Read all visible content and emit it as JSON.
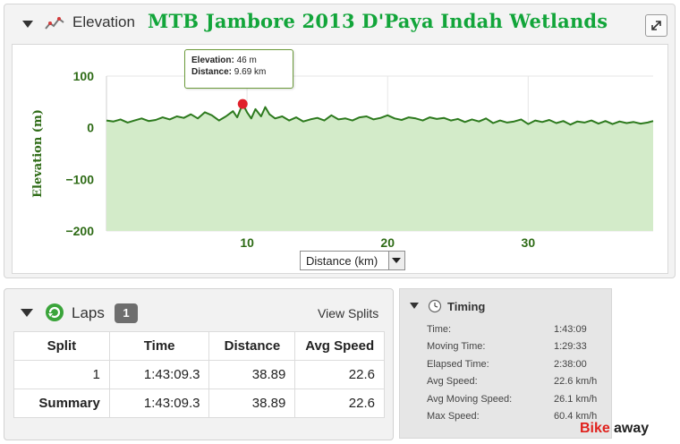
{
  "elevation_panel": {
    "title": "Elevation",
    "route_title": "MTB Jambore 2013 D'Paya Indah Wetlands",
    "tooltip": {
      "elevation_label": "Elevation:",
      "elevation_value": "46 m",
      "distance_label": "Distance:",
      "distance_value": "9.69 km"
    },
    "x_axis_select": "Distance (km)"
  },
  "chart_data": {
    "type": "area",
    "title": "",
    "xlabel": "Distance (km)",
    "ylabel": "Elevation (m)",
    "xlim": [
      0,
      38.89
    ],
    "ylim": [
      -200,
      100
    ],
    "x_ticks": [
      10,
      20,
      30
    ],
    "y_ticks": [
      100,
      0,
      -100,
      -200
    ],
    "fill_color": "#d3ebc9",
    "line_color": "#2d7a1e",
    "marker_color": "#e0202a",
    "highlight_point": {
      "x": 9.69,
      "y": 46
    },
    "series": [
      {
        "x": [
          0,
          0.5,
          1,
          1.5,
          2,
          2.5,
          3,
          3.5,
          4,
          4.5,
          5,
          5.5,
          6,
          6.5,
          7,
          7.5,
          8,
          8.5,
          9,
          9.3,
          9.69,
          10,
          10.3,
          10.6,
          11,
          11.3,
          11.6,
          12,
          12.5,
          13,
          13.5,
          14,
          14.5,
          15,
          15.5,
          16,
          16.5,
          17,
          17.5,
          18,
          18.5,
          19,
          19.5,
          20,
          20.5,
          21,
          21.5,
          22,
          22.5,
          23,
          23.5,
          24,
          24.5,
          25,
          25.5,
          26,
          26.5,
          27,
          27.5,
          28,
          28.5,
          29,
          29.5,
          30,
          30.5,
          31,
          31.5,
          32,
          32.5,
          33,
          33.5,
          34,
          34.5,
          35,
          35.5,
          36,
          36.5,
          37,
          37.5,
          38,
          38.5,
          38.89
        ],
        "y": [
          14,
          12,
          16,
          10,
          14,
          18,
          13,
          15,
          20,
          16,
          22,
          19,
          26,
          18,
          30,
          24,
          14,
          22,
          32,
          20,
          46,
          30,
          18,
          36,
          22,
          40,
          26,
          18,
          22,
          14,
          20,
          12,
          16,
          19,
          14,
          24,
          16,
          18,
          14,
          20,
          22,
          16,
          19,
          24,
          18,
          15,
          20,
          18,
          14,
          20,
          17,
          19,
          14,
          17,
          11,
          16,
          12,
          18,
          9,
          14,
          10,
          12,
          16,
          7,
          14,
          11,
          15,
          9,
          13,
          6,
          12,
          10,
          14,
          8,
          13,
          7,
          12,
          9,
          11,
          8,
          10,
          13
        ]
      }
    ]
  },
  "laps_panel": {
    "title": "Laps",
    "count": "1",
    "view_splits": "View Splits",
    "columns": [
      "Split",
      "Time",
      "Distance",
      "Avg Speed"
    ],
    "rows": [
      [
        "1",
        "1:43:09.3",
        "38.89",
        "22.6"
      ],
      [
        "Summary",
        "1:43:09.3",
        "38.89",
        "22.6"
      ]
    ]
  },
  "timing_panel": {
    "title": "Timing",
    "rows": [
      {
        "label": "Time:",
        "value": "1:43:09"
      },
      {
        "label": "Moving Time:",
        "value": "1:29:33"
      },
      {
        "label": "Elapsed Time:",
        "value": "2:38:00"
      },
      {
        "label": "Avg Speed:",
        "value": "22.6 km/h"
      },
      {
        "label": "Avg Moving Speed:",
        "value": "26.1 km/h"
      },
      {
        "label": "Max Speed:",
        "value": "60.4 km/h"
      }
    ]
  },
  "watermark": {
    "part1": "Bike",
    "part2": "away"
  },
  "icons": {
    "elevation": "elevation-graph-icon",
    "expand": "expand-icon",
    "laps": "laps-refresh-icon",
    "timing": "clock-icon",
    "collapse": "triangle-down-icon"
  }
}
